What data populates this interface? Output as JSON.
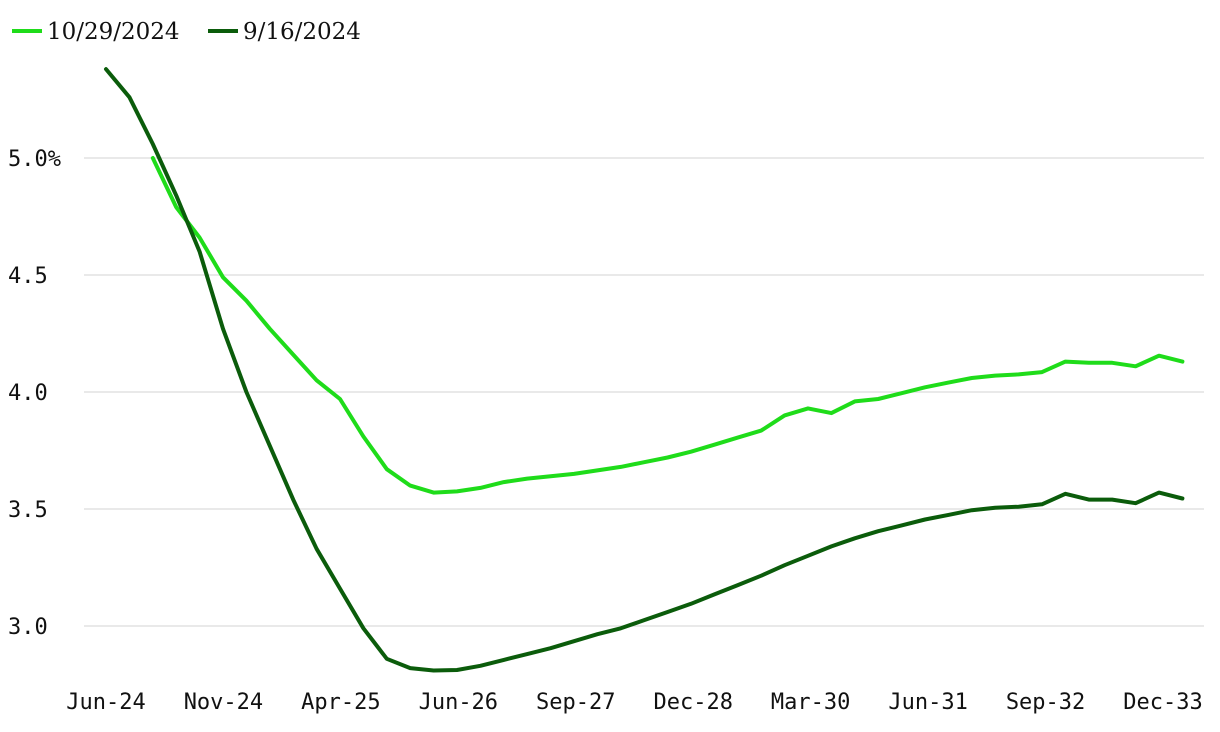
{
  "chart_data": {
    "type": "line",
    "title": "",
    "xlabel": "",
    "ylabel": "",
    "x_tick_labels": [
      "Jun-24",
      "Nov-24",
      "Apr-25",
      "Jun-26",
      "Sep-27",
      "Dec-28",
      "Mar-30",
      "Jun-31",
      "Sep-32",
      "Dec-33"
    ],
    "y_ticks": [
      {
        "value": 5.0,
        "label": "5.0%"
      },
      {
        "value": 4.5,
        "label": "4.5"
      },
      {
        "value": 4.0,
        "label": "4.0"
      },
      {
        "value": 3.5,
        "label": "3.5"
      },
      {
        "value": 3.0,
        "label": "3.0"
      }
    ],
    "ylim": [
      2.8,
      5.4
    ],
    "grid": true,
    "legend_position": "top-left",
    "series": [
      {
        "name": "10/29/2024",
        "color": "#1fdc1a",
        "points": [
          [
            2,
            5.0
          ],
          [
            3,
            4.79
          ],
          [
            4,
            4.66
          ],
          [
            5,
            4.49
          ],
          [
            6,
            4.39
          ],
          [
            7,
            4.27
          ],
          [
            8,
            4.16
          ],
          [
            9,
            4.05
          ],
          [
            10,
            3.97
          ],
          [
            11,
            3.81
          ],
          [
            12,
            3.67
          ],
          [
            13,
            3.6
          ],
          [
            14,
            3.57
          ],
          [
            15,
            3.575
          ],
          [
            16,
            3.59
          ],
          [
            17,
            3.615
          ],
          [
            18,
            3.63
          ],
          [
            19,
            3.64
          ],
          [
            20,
            3.65
          ],
          [
            21,
            3.665
          ],
          [
            22,
            3.68
          ],
          [
            23,
            3.7
          ],
          [
            24,
            3.72
          ],
          [
            25,
            3.745
          ],
          [
            26,
            3.775
          ],
          [
            27,
            3.805
          ],
          [
            28,
            3.835
          ],
          [
            29,
            3.9
          ],
          [
            30,
            3.93
          ],
          [
            31,
            3.91
          ],
          [
            32,
            3.96
          ],
          [
            33,
            3.97
          ],
          [
            34,
            3.995
          ],
          [
            35,
            4.02
          ],
          [
            36,
            4.04
          ],
          [
            37,
            4.06
          ],
          [
            38,
            4.07
          ],
          [
            39,
            4.075
          ],
          [
            40,
            4.085
          ],
          [
            41,
            4.13
          ],
          [
            42,
            4.125
          ],
          [
            43,
            4.125
          ],
          [
            44,
            4.11
          ],
          [
            45,
            4.155
          ],
          [
            46,
            4.13
          ]
        ]
      },
      {
        "name": "9/16/2024",
        "color": "#0b5c0b",
        "points": [
          [
            0,
            5.38
          ],
          [
            1,
            5.26
          ],
          [
            2,
            5.06
          ],
          [
            3,
            4.84
          ],
          [
            4,
            4.6
          ],
          [
            5,
            4.27
          ],
          [
            6,
            4.0
          ],
          [
            7,
            3.77
          ],
          [
            8,
            3.54
          ],
          [
            9,
            3.33
          ],
          [
            10,
            3.16
          ],
          [
            11,
            2.99
          ],
          [
            12,
            2.86
          ],
          [
            13,
            2.82
          ],
          [
            14,
            2.81
          ],
          [
            15,
            2.812
          ],
          [
            16,
            2.83
          ],
          [
            17,
            2.855
          ],
          [
            18,
            2.88
          ],
          [
            19,
            2.905
          ],
          [
            20,
            2.935
          ],
          [
            21,
            2.965
          ],
          [
            22,
            2.99
          ],
          [
            23,
            3.025
          ],
          [
            24,
            3.06
          ],
          [
            25,
            3.095
          ],
          [
            26,
            3.135
          ],
          [
            27,
            3.175
          ],
          [
            28,
            3.215
          ],
          [
            29,
            3.26
          ],
          [
            30,
            3.3
          ],
          [
            31,
            3.34
          ],
          [
            32,
            3.375
          ],
          [
            33,
            3.405
          ],
          [
            34,
            3.43
          ],
          [
            35,
            3.455
          ],
          [
            36,
            3.475
          ],
          [
            37,
            3.495
          ],
          [
            38,
            3.505
          ],
          [
            39,
            3.51
          ],
          [
            40,
            3.52
          ],
          [
            41,
            3.565
          ],
          [
            42,
            3.54
          ],
          [
            43,
            3.54
          ],
          [
            44,
            3.525
          ],
          [
            45,
            3.57
          ],
          [
            46,
            3.545
          ]
        ]
      }
    ]
  }
}
